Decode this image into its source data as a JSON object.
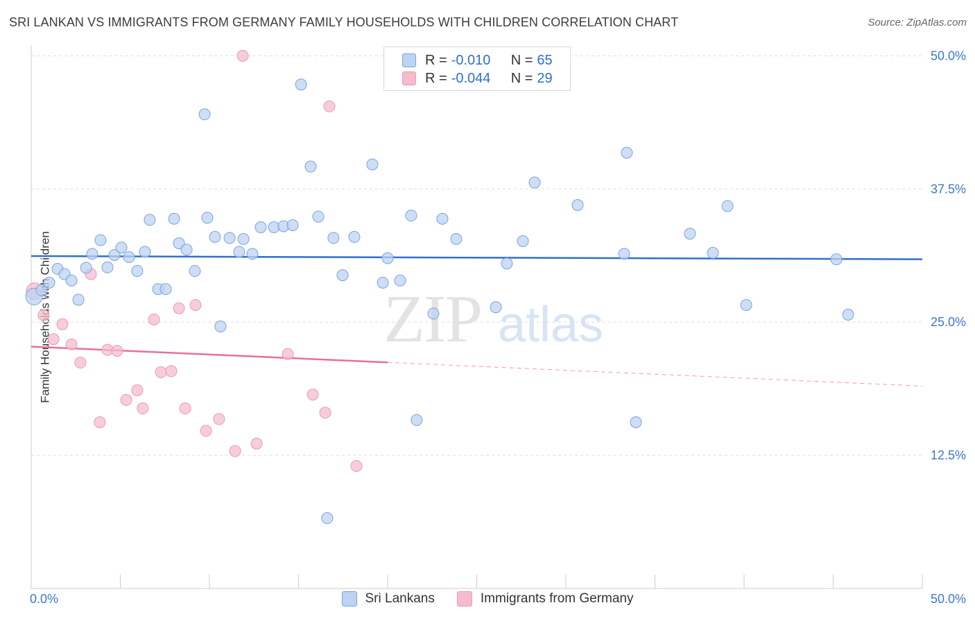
{
  "chart_data": {
    "type": "scatter",
    "title": "SRI LANKAN VS IMMIGRANTS FROM GERMANY FAMILY HOUSEHOLDS WITH CHILDREN CORRELATION CHART",
    "source": "Source: ZipAtlas.com",
    "ylabel": "Family Households with Children",
    "xlabel": "",
    "xlim": [
      0,
      50
    ],
    "ylim": [
      0,
      51
    ],
    "x_tick_labels": [
      "0.0%",
      "50.0%"
    ],
    "y_ticks": [
      {
        "value": 12.5,
        "label": "12.5%"
      },
      {
        "value": 25.0,
        "label": "25.0%"
      },
      {
        "value": 37.5,
        "label": "37.5%"
      },
      {
        "value": 50.0,
        "label": "50.0%"
      }
    ],
    "grid": "dashed-horizontal",
    "watermark": {
      "part1": "ZIP",
      "part2": "atlas"
    },
    "legend": [
      {
        "name": "Sri Lankans",
        "r_label": "R =",
        "r": "-0.010",
        "n_label": "N =",
        "n": "65"
      },
      {
        "name": "Immigrants from Germany",
        "r_label": "R =",
        "r": "-0.044",
        "n_label": "N =",
        "n": "29"
      }
    ],
    "colors": {
      "blue_fill": "#bcd3f2",
      "blue_stroke": "#7ba3dd",
      "blue_line": "#2f6fd0",
      "pink_fill": "#f5bccd",
      "pink_stroke": "#e89ab2",
      "pink_line": "#e8709a",
      "axis_text": "#3d76d0",
      "grid": "#dddddd"
    },
    "series": [
      {
        "name": "Sri Lankans",
        "color": "blue",
        "trend": {
          "x": [
            0,
            50
          ],
          "y": [
            31.2,
            30.9
          ],
          "solid_until": 50
        },
        "points": [
          [
            0.16,
            27.4,
            "large"
          ],
          [
            0.58,
            27.99
          ],
          [
            1.01,
            28.7
          ],
          [
            1.48,
            30.0
          ],
          [
            1.87,
            29.5
          ],
          [
            2.26,
            28.9
          ],
          [
            2.65,
            27.1
          ],
          [
            3.08,
            30.1
          ],
          [
            3.42,
            31.4
          ],
          [
            3.89,
            32.7
          ],
          [
            4.28,
            30.14
          ],
          [
            4.67,
            31.3
          ],
          [
            5.06,
            32.0
          ],
          [
            5.49,
            31.1
          ],
          [
            5.95,
            29.8
          ],
          [
            6.38,
            31.6
          ],
          [
            6.65,
            34.6
          ],
          [
            7.12,
            28.1
          ],
          [
            7.55,
            28.1
          ],
          [
            8.02,
            34.7
          ],
          [
            8.29,
            32.4
          ],
          [
            8.72,
            31.8
          ],
          [
            9.18,
            29.8
          ],
          [
            9.73,
            44.5
          ],
          [
            9.88,
            34.8
          ],
          [
            10.31,
            33.0
          ],
          [
            10.62,
            24.6
          ],
          [
            11.13,
            32.9
          ],
          [
            11.67,
            31.6
          ],
          [
            11.91,
            32.8
          ],
          [
            12.41,
            31.4
          ],
          [
            12.88,
            33.9
          ],
          [
            13.62,
            33.9
          ],
          [
            14.16,
            34.0
          ],
          [
            14.67,
            34.1
          ],
          [
            15.14,
            47.3
          ],
          [
            15.68,
            39.6
          ],
          [
            16.11,
            34.9
          ],
          [
            16.61,
            6.6
          ],
          [
            16.96,
            32.9
          ],
          [
            17.47,
            29.4
          ],
          [
            18.13,
            33.0
          ],
          [
            19.14,
            39.8
          ],
          [
            19.73,
            28.7
          ],
          [
            20.0,
            31.0
          ],
          [
            20.7,
            28.9
          ],
          [
            21.32,
            35.0
          ],
          [
            21.63,
            15.8
          ],
          [
            22.57,
            25.8
          ],
          [
            23.07,
            34.7
          ],
          [
            23.85,
            32.8
          ],
          [
            26.07,
            26.4
          ],
          [
            26.69,
            30.5
          ],
          [
            27.59,
            32.6
          ],
          [
            28.25,
            38.1
          ],
          [
            30.66,
            35.99
          ],
          [
            33.27,
            31.4
          ],
          [
            33.42,
            40.9
          ],
          [
            33.93,
            15.6
          ],
          [
            36.96,
            33.3
          ],
          [
            38.25,
            31.5
          ],
          [
            39.07,
            35.9
          ],
          [
            40.12,
            26.6
          ],
          [
            45.18,
            30.9
          ],
          [
            45.84,
            25.7
          ]
        ]
      },
      {
        "name": "Immigrants from Germany",
        "color": "pink",
        "trend": {
          "x": [
            0,
            50
          ],
          "y": [
            22.7,
            19.0
          ],
          "solid_until": 20.0
        },
        "points": [
          [
            0.19,
            27.9,
            "large"
          ],
          [
            0.7,
            25.65
          ],
          [
            1.75,
            24.8
          ],
          [
            1.25,
            23.4
          ],
          [
            2.26,
            22.9
          ],
          [
            2.76,
            21.2
          ],
          [
            3.35,
            29.5
          ],
          [
            3.85,
            15.6
          ],
          [
            4.28,
            22.4
          ],
          [
            4.82,
            22.3
          ],
          [
            5.33,
            17.7
          ],
          [
            5.95,
            18.6
          ],
          [
            6.26,
            16.9
          ],
          [
            6.89,
            25.25
          ],
          [
            7.28,
            20.3
          ],
          [
            7.86,
            20.4
          ],
          [
            8.29,
            26.3
          ],
          [
            8.64,
            16.9
          ],
          [
            9.22,
            26.6
          ],
          [
            9.81,
            14.8
          ],
          [
            10.54,
            15.9
          ],
          [
            11.44,
            12.9
          ],
          [
            11.87,
            50.0
          ],
          [
            12.65,
            13.6
          ],
          [
            14.4,
            22.0
          ],
          [
            15.8,
            18.2
          ],
          [
            16.5,
            16.5
          ],
          [
            16.73,
            45.25
          ],
          [
            18.25,
            11.5
          ]
        ]
      }
    ]
  }
}
